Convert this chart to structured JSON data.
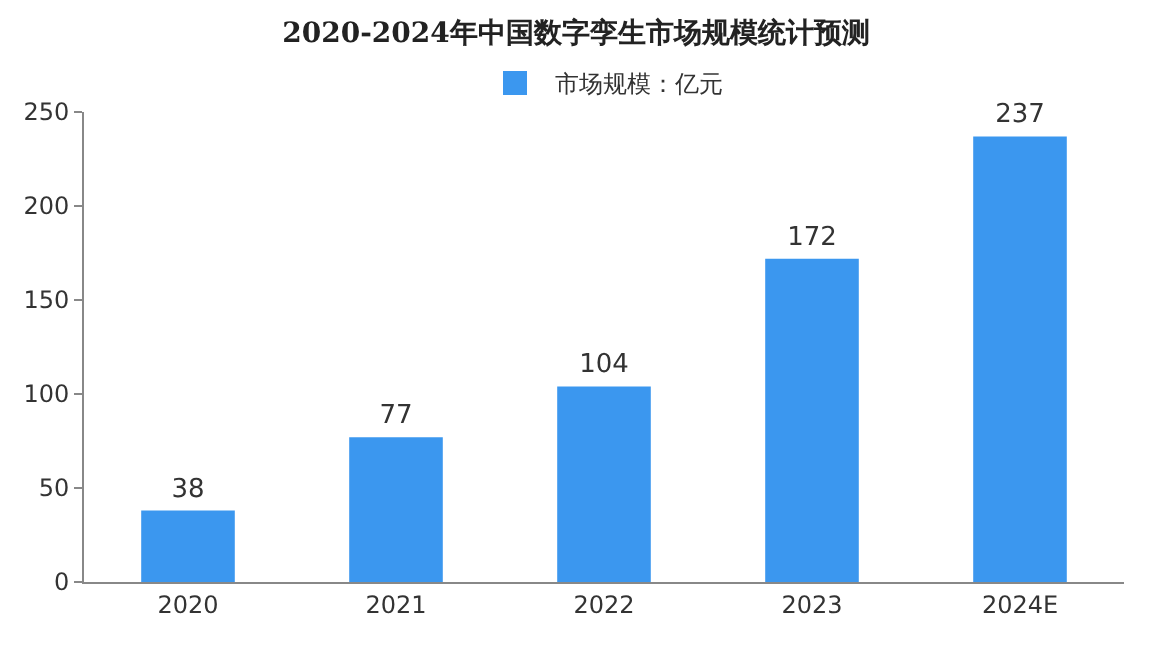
{
  "chart_data": {
    "type": "bar",
    "title": "2020-2024年中国数字孪生市场规模统计预测",
    "categories": [
      "2020",
      "2021",
      "2022",
      "2023",
      "2024E"
    ],
    "series": [
      {
        "name": "市场规模：亿元",
        "color": "#3b97ef",
        "values": [
          38,
          77,
          104,
          172,
          237
        ]
      }
    ],
    "ylim": [
      0,
      250
    ],
    "yticks": [
      0,
      50,
      100,
      150,
      200,
      250
    ],
    "data_labels": true,
    "grid": false,
    "legend": "top"
  }
}
